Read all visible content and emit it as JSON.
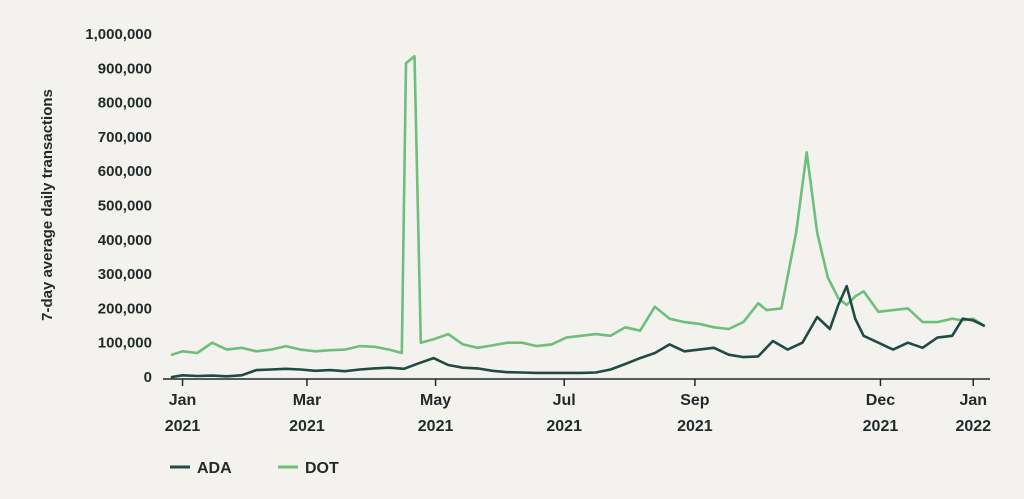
{
  "chart_data": {
    "type": "line",
    "title": "",
    "xlabel": "",
    "ylabel": "7-day average daily transactions",
    "ylim": [
      0,
      1000000
    ],
    "yticks": [
      "0",
      "100,000",
      "200,000",
      "300,000",
      "400,000",
      "500,000",
      "600,000",
      "700,000",
      "800,000",
      "900,000",
      "1,000,000"
    ],
    "xlim": [
      "2020-12-27",
      "2022-01-18"
    ],
    "xticks": [
      {
        "date": "2021-01-01",
        "line1": "Jan",
        "line2": "2021"
      },
      {
        "date": "2021-03-01",
        "line1": "Mar",
        "line2": "2021"
      },
      {
        "date": "2021-05-01",
        "line1": "May",
        "line2": "2021"
      },
      {
        "date": "2021-07-01",
        "line1": "Jul",
        "line2": "2021"
      },
      {
        "date": "2021-09-01",
        "line1": "Sep",
        "line2": "2021"
      },
      {
        "date": "2021-11-28",
        "line1": "Dec",
        "line2": "2021"
      },
      {
        "date": "2022-01-11",
        "line1": "Jan",
        "line2": "2022"
      }
    ],
    "grid": false,
    "legend_position": "bottom-left",
    "series": [
      {
        "name": "ADA",
        "color": "#1f4a45",
        "points": [
          [
            "2020-12-27",
            0
          ],
          [
            "2021-01-01",
            5000
          ],
          [
            "2021-01-08",
            3000
          ],
          [
            "2021-01-15",
            4000
          ],
          [
            "2021-01-22",
            2000
          ],
          [
            "2021-01-29",
            5000
          ],
          [
            "2021-02-05",
            20000
          ],
          [
            "2021-02-12",
            22000
          ],
          [
            "2021-02-19",
            24000
          ],
          [
            "2021-02-26",
            22000
          ],
          [
            "2021-03-05",
            18000
          ],
          [
            "2021-03-12",
            20000
          ],
          [
            "2021-03-19",
            17000
          ],
          [
            "2021-03-26",
            22000
          ],
          [
            "2021-04-02",
            25000
          ],
          [
            "2021-04-09",
            27000
          ],
          [
            "2021-04-16",
            24000
          ],
          [
            "2021-04-23",
            40000
          ],
          [
            "2021-04-30",
            55000
          ],
          [
            "2021-05-07",
            35000
          ],
          [
            "2021-05-14",
            27000
          ],
          [
            "2021-05-21",
            25000
          ],
          [
            "2021-05-28",
            18000
          ],
          [
            "2021-06-04",
            14000
          ],
          [
            "2021-06-11",
            13000
          ],
          [
            "2021-06-18",
            12000
          ],
          [
            "2021-06-25",
            12000
          ],
          [
            "2021-07-02",
            12000
          ],
          [
            "2021-07-09",
            12000
          ],
          [
            "2021-07-16",
            13000
          ],
          [
            "2021-07-23",
            22000
          ],
          [
            "2021-07-30",
            38000
          ],
          [
            "2021-08-06",
            55000
          ],
          [
            "2021-08-13",
            70000
          ],
          [
            "2021-08-20",
            95000
          ],
          [
            "2021-08-27",
            75000
          ],
          [
            "2021-09-03",
            80000
          ],
          [
            "2021-09-10",
            85000
          ],
          [
            "2021-09-17",
            65000
          ],
          [
            "2021-09-24",
            58000
          ],
          [
            "2021-10-01",
            60000
          ],
          [
            "2021-10-08",
            105000
          ],
          [
            "2021-10-15",
            80000
          ],
          [
            "2021-10-22",
            100000
          ],
          [
            "2021-10-29",
            175000
          ],
          [
            "2021-11-04",
            140000
          ],
          [
            "2021-11-08",
            210000
          ],
          [
            "2021-11-12",
            265000
          ],
          [
            "2021-11-16",
            170000
          ],
          [
            "2021-11-20",
            120000
          ],
          [
            "2021-11-27",
            100000
          ],
          [
            "2021-12-04",
            80000
          ],
          [
            "2021-12-11",
            100000
          ],
          [
            "2021-12-18",
            85000
          ],
          [
            "2021-12-25",
            115000
          ],
          [
            "2022-01-01",
            120000
          ],
          [
            "2022-01-06",
            170000
          ],
          [
            "2022-01-11",
            165000
          ],
          [
            "2022-01-16",
            150000
          ]
        ]
      },
      {
        "name": "DOT",
        "color": "#6dbf79",
        "points": [
          [
            "2020-12-27",
            65000
          ],
          [
            "2021-01-01",
            75000
          ],
          [
            "2021-01-08",
            70000
          ],
          [
            "2021-01-15",
            100000
          ],
          [
            "2021-01-22",
            80000
          ],
          [
            "2021-01-29",
            85000
          ],
          [
            "2021-02-05",
            75000
          ],
          [
            "2021-02-12",
            80000
          ],
          [
            "2021-02-19",
            90000
          ],
          [
            "2021-02-26",
            80000
          ],
          [
            "2021-03-05",
            75000
          ],
          [
            "2021-03-12",
            78000
          ],
          [
            "2021-03-19",
            80000
          ],
          [
            "2021-03-26",
            90000
          ],
          [
            "2021-04-02",
            88000
          ],
          [
            "2021-04-09",
            80000
          ],
          [
            "2021-04-15",
            70000
          ],
          [
            "2021-04-17",
            915000
          ],
          [
            "2021-04-21",
            935000
          ],
          [
            "2021-04-24",
            100000
          ],
          [
            "2021-04-30",
            110000
          ],
          [
            "2021-05-07",
            125000
          ],
          [
            "2021-05-14",
            95000
          ],
          [
            "2021-05-21",
            85000
          ],
          [
            "2021-05-28",
            92000
          ],
          [
            "2021-06-04",
            100000
          ],
          [
            "2021-06-11",
            100000
          ],
          [
            "2021-06-18",
            90000
          ],
          [
            "2021-06-25",
            95000
          ],
          [
            "2021-07-02",
            115000
          ],
          [
            "2021-07-09",
            120000
          ],
          [
            "2021-07-16",
            125000
          ],
          [
            "2021-07-23",
            120000
          ],
          [
            "2021-07-30",
            145000
          ],
          [
            "2021-08-06",
            135000
          ],
          [
            "2021-08-13",
            205000
          ],
          [
            "2021-08-20",
            170000
          ],
          [
            "2021-08-27",
            160000
          ],
          [
            "2021-09-03",
            155000
          ],
          [
            "2021-09-10",
            145000
          ],
          [
            "2021-09-17",
            140000
          ],
          [
            "2021-09-24",
            160000
          ],
          [
            "2021-10-01",
            215000
          ],
          [
            "2021-10-05",
            195000
          ],
          [
            "2021-10-12",
            200000
          ],
          [
            "2021-10-19",
            420000
          ],
          [
            "2021-10-24",
            655000
          ],
          [
            "2021-10-29",
            420000
          ],
          [
            "2021-11-03",
            290000
          ],
          [
            "2021-11-08",
            230000
          ],
          [
            "2021-11-12",
            210000
          ],
          [
            "2021-11-16",
            235000
          ],
          [
            "2021-11-20",
            250000
          ],
          [
            "2021-11-27",
            190000
          ],
          [
            "2021-12-04",
            195000
          ],
          [
            "2021-12-11",
            200000
          ],
          [
            "2021-12-18",
            160000
          ],
          [
            "2021-12-25",
            160000
          ],
          [
            "2022-01-01",
            170000
          ],
          [
            "2022-01-06",
            165000
          ],
          [
            "2022-01-11",
            170000
          ],
          [
            "2022-01-16",
            150000
          ]
        ]
      }
    ]
  }
}
